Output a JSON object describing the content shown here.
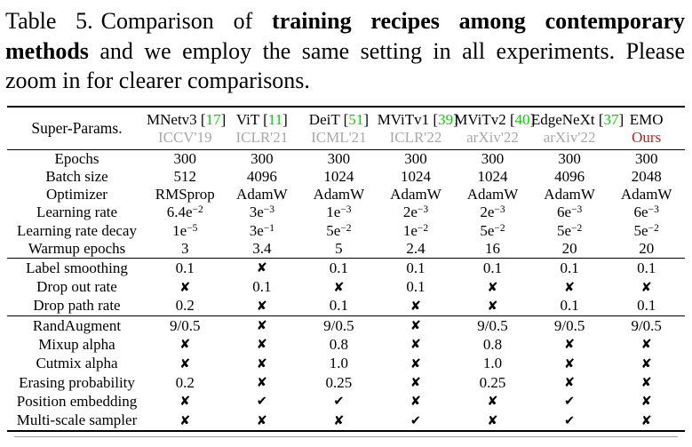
{
  "caption": {
    "label": "Table 5.",
    "before_bold": "Comparison of",
    "bold": "training recipes among contemporary methods",
    "after_bold": "and we employ the same setting in all experiments. Please zoom in for clearer comparisons."
  },
  "colors": {
    "cite_green": "#00d400",
    "venue_gray": "#a9a9a9",
    "ours_red": "#bf1f1f",
    "rule_black": "#000000",
    "bottom_thin_rule_gray": "#9c9c9c"
  },
  "table": {
    "corner_label": "Super-Params.",
    "columns": [
      {
        "name": "MNetv3",
        "cite": "17",
        "venue": "ICCV'19",
        "venue_style": "gray"
      },
      {
        "name": "ViT",
        "cite": "11",
        "venue": "ICLR'21",
        "venue_style": "gray"
      },
      {
        "name": "DeiT",
        "cite": "51",
        "venue": "ICML'21",
        "venue_style": "gray"
      },
      {
        "name": "MViTv1",
        "cite": "39",
        "venue": "ICLR'22",
        "venue_style": "gray"
      },
      {
        "name": "MViTv2",
        "cite": "40",
        "venue": "arXiv'22",
        "venue_style": "gray"
      },
      {
        "name": "EdgeNeXt",
        "cite": "37",
        "venue": "arXiv'22",
        "venue_style": "gray"
      },
      {
        "name": "EMO",
        "cite": null,
        "venue": "Ours",
        "venue_style": "red"
      }
    ],
    "sections": [
      {
        "rows": [
          {
            "label": "Epochs",
            "values": [
              "300",
              "300",
              "300",
              "300",
              "300",
              "300",
              "300"
            ]
          },
          {
            "label": "Batch size",
            "values": [
              "512",
              "4096",
              "1024",
              "1024",
              "1024",
              "4096",
              "2048"
            ]
          },
          {
            "label": "Optimizer",
            "values": [
              "RMSprop",
              "AdamW",
              "AdamW",
              "AdamW",
              "AdamW",
              "AdamW",
              "AdamW"
            ]
          },
          {
            "label": "Learning rate",
            "values": [
              "6.4e-2",
              "3e-3",
              "1e-3",
              "2e-3",
              "2e-3",
              "6e-3",
              "6e-3"
            ]
          },
          {
            "label": "Learning rate decay",
            "values": [
              "1e-5",
              "3e-1",
              "5e-2",
              "1e-2",
              "5e-2",
              "5e-2",
              "5e-2"
            ]
          },
          {
            "label": "Warmup epochs",
            "values": [
              "3",
              "3.4",
              "5",
              "2.4",
              "16",
              "20",
              "20"
            ]
          }
        ]
      },
      {
        "rows": [
          {
            "label": "Label smoothing",
            "values": [
              "0.1",
              "✘",
              "0.1",
              "0.1",
              "0.1",
              "0.1",
              "0.1"
            ]
          },
          {
            "label": "Drop out rate",
            "values": [
              "✘",
              "0.1",
              "✘",
              "0.1",
              "✘",
              "✘",
              "✘"
            ]
          },
          {
            "label": "Drop path rate",
            "values": [
              "0.2",
              "✘",
              "0.1",
              "✘",
              "✘",
              "0.1",
              "0.1"
            ]
          }
        ]
      },
      {
        "rows": [
          {
            "label": "RandAugment",
            "values": [
              "9/0.5",
              "✘",
              "9/0.5",
              "✘",
              "9/0.5",
              "9/0.5",
              "9/0.5"
            ]
          },
          {
            "label": "Mixup alpha",
            "values": [
              "✘",
              "✘",
              "0.8",
              "✘",
              "0.8",
              "✘",
              "✘"
            ]
          },
          {
            "label": "Cutmix alpha",
            "values": [
              "✘",
              "✘",
              "1.0",
              "✘",
              "1.0",
              "✘",
              "✘"
            ]
          },
          {
            "label": "Erasing probability",
            "values": [
              "0.2",
              "✘",
              "0.25",
              "✘",
              "0.25",
              "✘",
              "✘"
            ]
          },
          {
            "label": "Position embedding",
            "values": [
              "✘",
              "✔",
              "✔",
              "✘",
              "✘",
              "✔",
              "✘"
            ]
          },
          {
            "label": "Multi-scale sampler",
            "values": [
              "✘",
              "✘",
              "✘",
              "✔",
              "✘",
              "✔",
              "✘"
            ]
          }
        ]
      }
    ]
  }
}
